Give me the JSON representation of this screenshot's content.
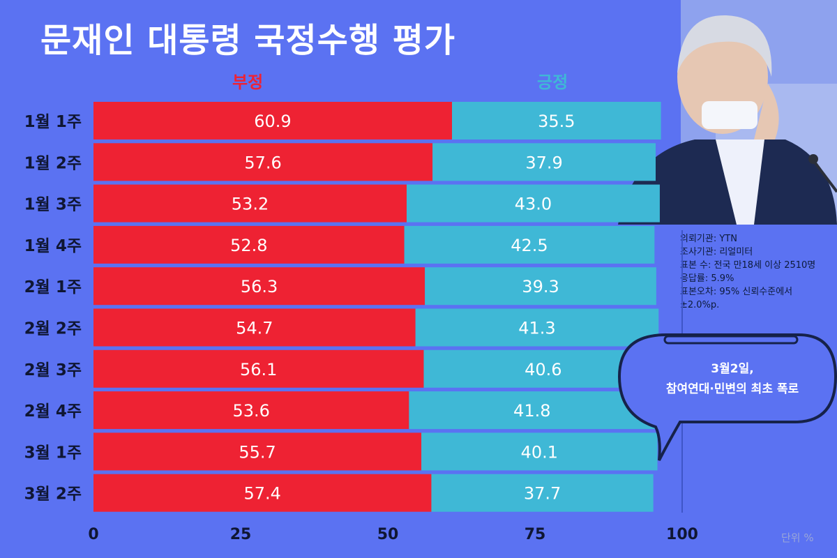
{
  "title": "문재인 대통령 국정수행 평가",
  "legend": {
    "negative": "부정",
    "positive": "긍정"
  },
  "colors": {
    "background": "#5b72f2",
    "negative": "#ee2233",
    "positive": "#3fb8d6"
  },
  "info": [
    "의뢰기관: YTN",
    "조사기관: 리얼미터",
    "표본 수: 전국 만18세 이상 2510명",
    "응답률: 5.9%",
    "표본오차: 95% 신뢰수준에서",
    "±2.0%p."
  ],
  "annotation": {
    "line1": "3월2일,",
    "line2": "참여연대·민변의 최초 폭로"
  },
  "unit": "단위 %",
  "chart_data": {
    "type": "bar",
    "orientation": "horizontal",
    "stacked": true,
    "categories": [
      "1월 1주",
      "1월 2주",
      "1월 3주",
      "1월 4주",
      "2월 1주",
      "2월 2주",
      "2월 3주",
      "2월 4주",
      "3월 1주",
      "3월 2주"
    ],
    "series": [
      {
        "name": "부정",
        "values": [
          60.9,
          57.6,
          53.2,
          52.8,
          56.3,
          54.7,
          56.1,
          53.6,
          55.7,
          57.4
        ]
      },
      {
        "name": "긍정",
        "values": [
          35.5,
          37.9,
          43.0,
          42.5,
          39.3,
          41.3,
          40.6,
          41.8,
          40.1,
          37.7
        ]
      }
    ],
    "xlim": [
      0,
      100
    ],
    "xticks": [
      "0",
      "25",
      "50",
      "75",
      "100"
    ]
  }
}
